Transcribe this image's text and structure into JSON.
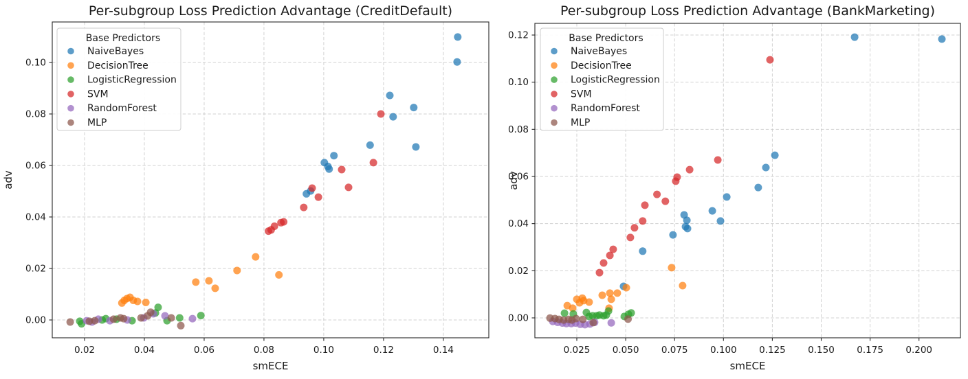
{
  "figure": {
    "background": "#ffffff",
    "description": "Two side-by-side scatter plots comparing per-subgroup loss prediction advantage versus smECE for six base predictors"
  },
  "chart_data": [
    {
      "type": "scatter",
      "title": "Per-subgroup Loss Prediction Advantage (CreditDefault)",
      "xlabel": "smECE",
      "ylabel": "adv",
      "legend_title": "Base Predictors",
      "legend_position": "upper left",
      "grid": true,
      "xlim": [
        0.0092,
        0.1552
      ],
      "ylim": [
        -0.00693,
        0.11573
      ],
      "xticks": {
        "values": [
          0.02,
          0.04,
          0.06,
          0.08,
          0.1,
          0.12,
          0.14
        ],
        "labels": [
          "0.02",
          "0.04",
          "0.06",
          "0.08",
          "0.10",
          "0.12",
          "0.14"
        ]
      },
      "yticks": {
        "values": [
          0.0,
          0.02,
          0.04,
          0.06,
          0.08,
          0.1
        ],
        "labels": [
          "0.00",
          "0.02",
          "0.04",
          "0.06",
          "0.08",
          "0.10"
        ]
      },
      "series": [
        {
          "name": "NaiveBayes",
          "color": "#1f77b4",
          "points": [
            [
              0.1448,
              0.1099
            ],
            [
              0.1446,
              0.1002
            ],
            [
              0.1221,
              0.0872
            ],
            [
              0.1301,
              0.0825
            ],
            [
              0.1232,
              0.0789
            ],
            [
              0.1308,
              0.0672
            ],
            [
              0.1155,
              0.0679
            ],
            [
              0.1034,
              0.0638
            ],
            [
              0.1002,
              0.0611
            ],
            [
              0.1014,
              0.0596
            ],
            [
              0.1018,
              0.0586
            ],
            [
              0.0956,
              0.0501
            ],
            [
              0.0942,
              0.049
            ]
          ]
        },
        {
          "name": "DecisionTree",
          "color": "#ff7f0e",
          "points": [
            [
              0.0325,
              0.0066
            ],
            [
              0.0333,
              0.0076
            ],
            [
              0.0342,
              0.0083
            ],
            [
              0.0352,
              0.0088
            ],
            [
              0.0363,
              0.0076
            ],
            [
              0.0377,
              0.0072
            ],
            [
              0.0405,
              0.0068
            ],
            [
              0.0572,
              0.0147
            ],
            [
              0.0616,
              0.0152
            ],
            [
              0.0637,
              0.0123
            ],
            [
              0.071,
              0.0192
            ],
            [
              0.0772,
              0.0245
            ],
            [
              0.085,
              0.0175
            ]
          ]
        },
        {
          "name": "LogisticRegression",
          "color": "#2ca02c",
          "points": [
            [
              0.0184,
              -0.0005
            ],
            [
              0.019,
              -0.0015
            ],
            [
              0.0259,
              0.0
            ],
            [
              0.0271,
              0.0005
            ],
            [
              0.0307,
              0.0003
            ],
            [
              0.0359,
              -0.0003
            ],
            [
              0.0437,
              0.0027
            ],
            [
              0.0446,
              0.0049
            ],
            [
              0.0476,
              -0.0003
            ],
            [
              0.0518,
              0.0008
            ],
            [
              0.0589,
              0.0017
            ]
          ]
        },
        {
          "name": "SVM",
          "color": "#d62728",
          "points": [
            [
              0.0815,
              0.0345
            ],
            [
              0.0824,
              0.035
            ],
            [
              0.0835,
              0.0364
            ],
            [
              0.0857,
              0.0378
            ],
            [
              0.0866,
              0.0381
            ],
            [
              0.0933,
              0.0437
            ],
            [
              0.0961,
              0.0512
            ],
            [
              0.0982,
              0.0477
            ],
            [
              0.106,
              0.0584
            ],
            [
              0.1083,
              0.0515
            ],
            [
              0.1166,
              0.0611
            ],
            [
              0.1191,
              0.08
            ]
          ]
        },
        {
          "name": "RandomForest",
          "color": "#9467bd",
          "points": [
            [
              0.0207,
              -0.0003
            ],
            [
              0.0225,
              -0.0008
            ],
            [
              0.0246,
              0.0003
            ],
            [
              0.0285,
              -0.0003
            ],
            [
              0.0343,
              0.0
            ],
            [
              0.0398,
              0.0008
            ],
            [
              0.043,
              0.0024
            ],
            [
              0.0469,
              0.0016
            ],
            [
              0.0561,
              0.0005
            ]
          ]
        },
        {
          "name": "MLP",
          "color": "#8c564b",
          "points": [
            [
              0.0152,
              -0.0008
            ],
            [
              0.0216,
              -0.0005
            ],
            [
              0.0234,
              -0.0003
            ],
            [
              0.0297,
              0.0003
            ],
            [
              0.032,
              0.0008
            ],
            [
              0.0331,
              0.0005
            ],
            [
              0.0389,
              0.0008
            ],
            [
              0.0411,
              0.0016
            ],
            [
              0.0421,
              0.003
            ],
            [
              0.049,
              0.0008
            ],
            [
              0.0522,
              -0.0022
            ]
          ]
        }
      ]
    },
    {
      "type": "scatter",
      "title": "Per-subgroup Loss Prediction Advantage (BankMarketing)",
      "xlabel": "smECE",
      "ylabel": "adv",
      "legend_title": "Base Predictors",
      "legend_position": "upper left",
      "grid": true,
      "xlim": [
        0.00355,
        0.2212
      ],
      "ylim": [
        -0.00845,
        0.12496
      ],
      "xticks": {
        "values": [
          0.025,
          0.05,
          0.075,
          0.1,
          0.125,
          0.15,
          0.175,
          0.2
        ],
        "labels": [
          "0.025",
          "0.050",
          "0.075",
          "0.100",
          "0.125",
          "0.150",
          "0.175",
          "0.200"
        ]
      },
      "yticks": {
        "values": [
          0.0,
          0.02,
          0.04,
          0.06,
          0.08,
          0.1,
          0.12
        ],
        "labels": [
          "0.00",
          "0.02",
          "0.04",
          "0.06",
          "0.08",
          "0.10",
          "0.12"
        ]
      },
      "series": [
        {
          "name": "NaiveBayes",
          "color": "#1f77b4",
          "points": [
            [
              0.0489,
              0.0134
            ],
            [
              0.0587,
              0.0283
            ],
            [
              0.0742,
              0.0352
            ],
            [
              0.0799,
              0.0437
            ],
            [
              0.0813,
              0.0414
            ],
            [
              0.0806,
              0.0387
            ],
            [
              0.0816,
              0.0379
            ],
            [
              0.0943,
              0.0454
            ],
            [
              0.0985,
              0.0411
            ],
            [
              0.1017,
              0.0513
            ],
            [
              0.1178,
              0.0553
            ],
            [
              0.1217,
              0.0638
            ],
            [
              0.1263,
              0.069
            ],
            [
              0.1671,
              0.1191
            ],
            [
              0.2117,
              0.1183
            ]
          ]
        },
        {
          "name": "DecisionTree",
          "color": "#ff7f0e",
          "points": [
            [
              0.0201,
              0.0052
            ],
            [
              0.0229,
              0.0041
            ],
            [
              0.025,
              0.0079
            ],
            [
              0.0264,
              0.0064
            ],
            [
              0.0278,
              0.0084
            ],
            [
              0.0285,
              0.0073
            ],
            [
              0.0313,
              0.0067
            ],
            [
              0.038,
              0.0096
            ],
            [
              0.0415,
              0.0041
            ],
            [
              0.0419,
              0.0105
            ],
            [
              0.0426,
              0.0079
            ],
            [
              0.0457,
              0.0105
            ],
            [
              0.0503,
              0.0128
            ],
            [
              0.0735,
              0.0213
            ],
            [
              0.0791,
              0.0137
            ]
          ]
        },
        {
          "name": "LogisticRegression",
          "color": "#2ca02c",
          "points": [
            [
              0.0187,
              0.002
            ],
            [
              0.0232,
              0.0017
            ],
            [
              0.0299,
              0.0023
            ],
            [
              0.0313,
              0.0006
            ],
            [
              0.0331,
              0.0009
            ],
            [
              0.0352,
              0.0009
            ],
            [
              0.0366,
              0.0012
            ],
            [
              0.0387,
              0.0009
            ],
            [
              0.0401,
              0.0012
            ],
            [
              0.0412,
              0.0029
            ],
            [
              0.0493,
              0.0006
            ],
            [
              0.0514,
              0.0015
            ],
            [
              0.0528,
              0.0021
            ]
          ]
        },
        {
          "name": "SVM",
          "color": "#d62728",
          "points": [
            [
              0.0366,
              0.0192
            ],
            [
              0.0387,
              0.0233
            ],
            [
              0.0419,
              0.0265
            ],
            [
              0.0436,
              0.0291
            ],
            [
              0.0524,
              0.0341
            ],
            [
              0.0545,
              0.0382
            ],
            [
              0.0587,
              0.0411
            ],
            [
              0.0598,
              0.0478
            ],
            [
              0.066,
              0.0524
            ],
            [
              0.0703,
              0.0495
            ],
            [
              0.0756,
              0.058
            ],
            [
              0.0763,
              0.0597
            ],
            [
              0.0827,
              0.0629
            ],
            [
              0.0971,
              0.067
            ],
            [
              0.1238,
              0.1095
            ]
          ]
        },
        {
          "name": "RandomForest",
          "color": "#9467bd",
          "points": [
            [
              0.0127,
              -0.0015
            ],
            [
              0.0152,
              -0.0019
            ],
            [
              0.0176,
              -0.0022
            ],
            [
              0.0197,
              -0.0024
            ],
            [
              0.0222,
              -0.0024
            ],
            [
              0.0243,
              -0.0022
            ],
            [
              0.0268,
              -0.0027
            ],
            [
              0.0292,
              -0.0029
            ],
            [
              0.0317,
              -0.0026
            ],
            [
              0.0341,
              -0.0019
            ],
            [
              0.0426,
              -0.0021
            ]
          ]
        },
        {
          "name": "MLP",
          "color": "#8c564b",
          "points": [
            [
              0.0113,
              -0.0001
            ],
            [
              0.0138,
              -0.0003
            ],
            [
              0.0159,
              -0.0006
            ],
            [
              0.0183,
              -0.0009
            ],
            [
              0.0208,
              -0.0006
            ],
            [
              0.0225,
              -0.0009
            ],
            [
              0.0246,
              -0.0003
            ],
            [
              0.0281,
              -0.0006
            ],
            [
              0.0334,
              -0.002
            ],
            [
              0.0512,
              -0.0005
            ]
          ]
        }
      ]
    }
  ]
}
